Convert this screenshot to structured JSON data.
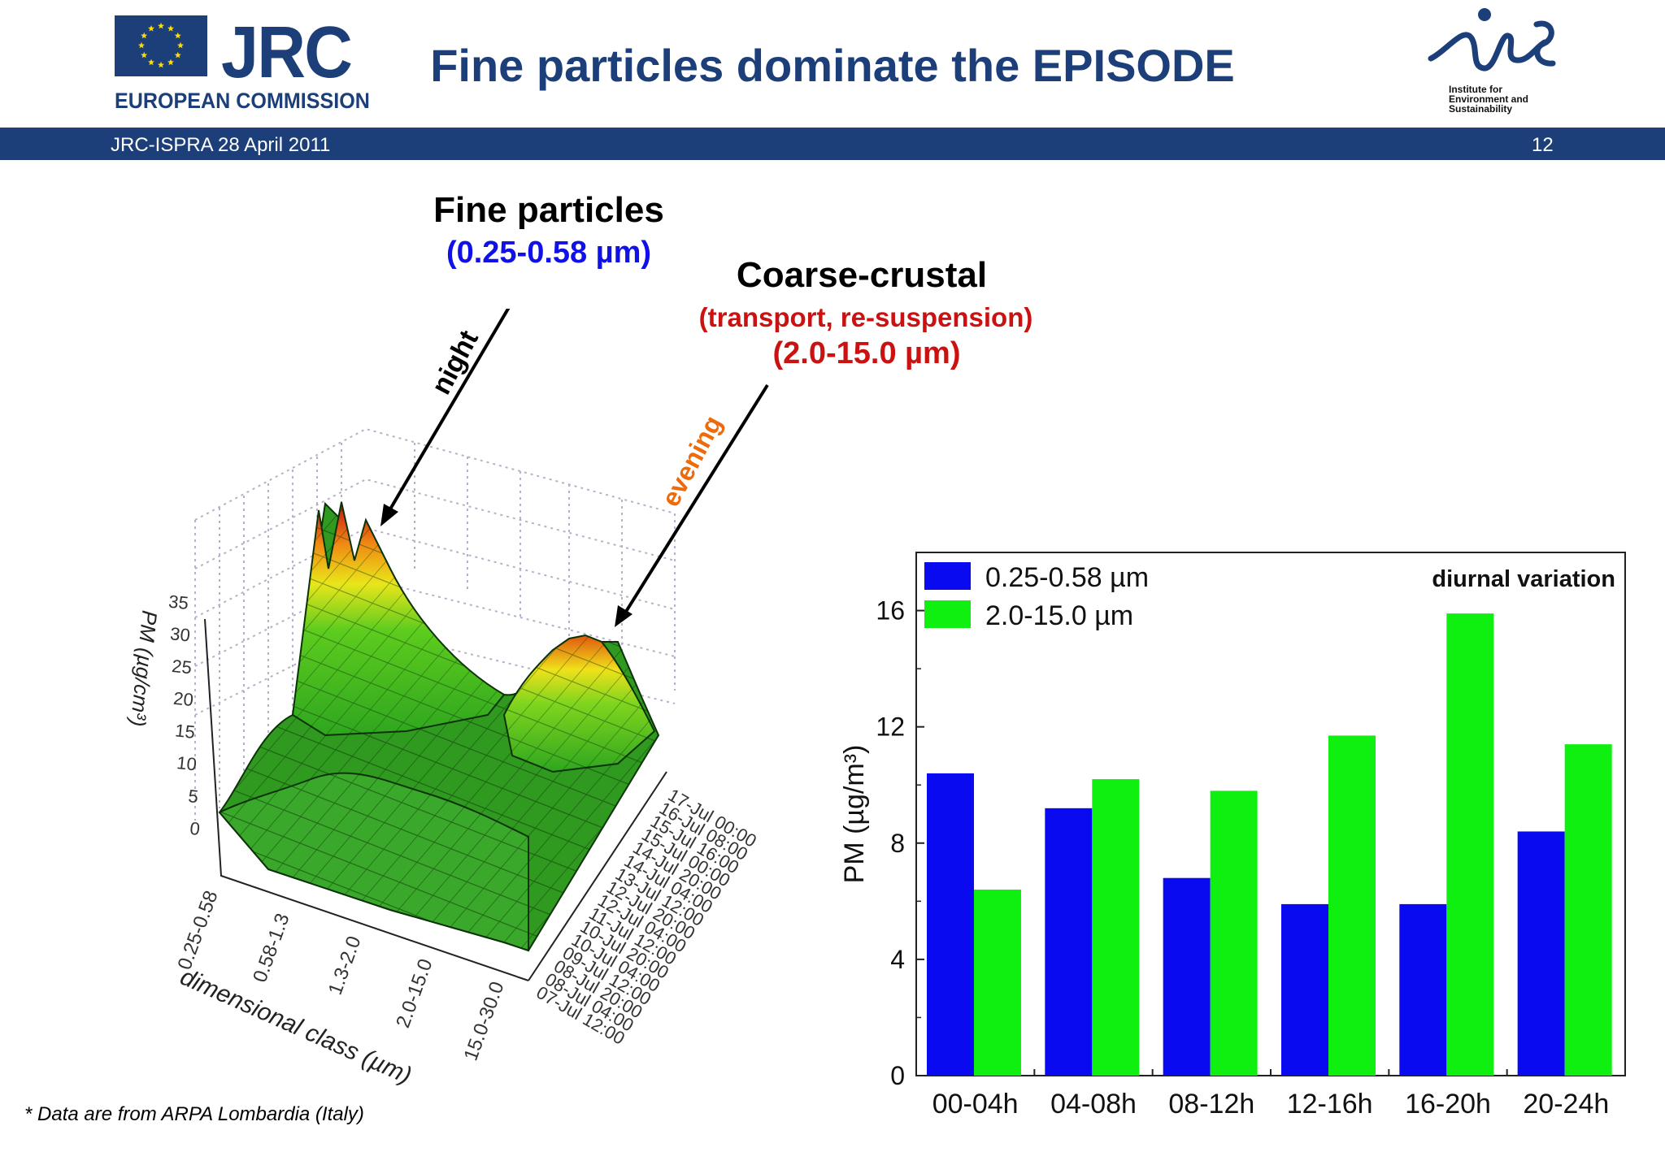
{
  "header": {
    "org_short": "JRC",
    "org_long": "EUROPEAN COMMISSION",
    "title": "Fine particles dominate the EPISODE",
    "ies_logo_text": "ies",
    "ies_subtitle_lines": [
      "Institute for",
      "Environment and",
      "Sustainability"
    ],
    "event": "JRC-ISPRA 28 April 2011",
    "slide_number": "12"
  },
  "annotations": {
    "fine_title": "Fine particles",
    "fine_range": "(0.25-0.58 µm)",
    "coarse_title": "Coarse-crustal",
    "coarse_sub": "(transport, re-suspension)",
    "coarse_range": "(2.0-15.0 µm)",
    "night_label": "night",
    "evening_label": "evening"
  },
  "colors": {
    "brand_blue": "#1c3f7a",
    "fine_blue": "#1010e8",
    "coarse_red": "#cc1111",
    "evening_orange": "#ee6a0a",
    "series_fine": "#0a0af0",
    "series_coarse": "#10f010"
  },
  "footnote": "* Data are from ARPA Lombardia (Italy)",
  "chart_data": [
    {
      "type": "surface",
      "zlabel": "PM (µg/cm³)",
      "xlabel": "dimensional class (µm)",
      "zlim": [
        0,
        35
      ],
      "z_ticks": [
        "0",
        "5",
        "10",
        "15",
        "20",
        "25",
        "30",
        "35"
      ],
      "size_classes": [
        "0.25-0.58",
        "0.58-1.3",
        "1.3-2.0",
        "2.0-15.0",
        "15.0-30.0"
      ],
      "time_ticks": [
        "07-Jul 12:00",
        "08-Jul 04:00",
        "08-Jul 20:00",
        "09-Jul 12:00",
        "10-Jul 04:00",
        "10-Jul 20:00",
        "11-Jul 12:00",
        "12-Jul 04:00",
        "12-Jul 20:00",
        "13-Jul 12:00",
        "14-Jul 04:00",
        "14-Jul 20:00",
        "15-Jul 00:00",
        "15-Jul 16:00",
        "16-Jul 08:00",
        "17-Jul 00:00"
      ],
      "peaks": [
        {
          "size_class": "0.25-0.58",
          "value": 30,
          "annotation": "night"
        },
        {
          "size_class": "2.0-15.0",
          "value": 20,
          "annotation": "evening"
        }
      ]
    },
    {
      "type": "bar",
      "title": "diurnal variation",
      "ylabel": "PM (µg/m³)",
      "ylim": [
        0,
        18
      ],
      "yticks": [
        "0",
        "4",
        "8",
        "12",
        "16"
      ],
      "categories": [
        "00-04h",
        "04-08h",
        "08-12h",
        "12-16h",
        "16-20h",
        "20-24h"
      ],
      "legend_position": "top-left",
      "series": [
        {
          "name": "0.25-0.58 µm",
          "values": [
            10.4,
            9.2,
            6.8,
            5.9,
            5.9,
            8.4
          ]
        },
        {
          "name": "2.0-15.0 µm",
          "values": [
            6.4,
            10.2,
            9.8,
            11.7,
            15.9,
            11.4
          ]
        }
      ]
    }
  ]
}
